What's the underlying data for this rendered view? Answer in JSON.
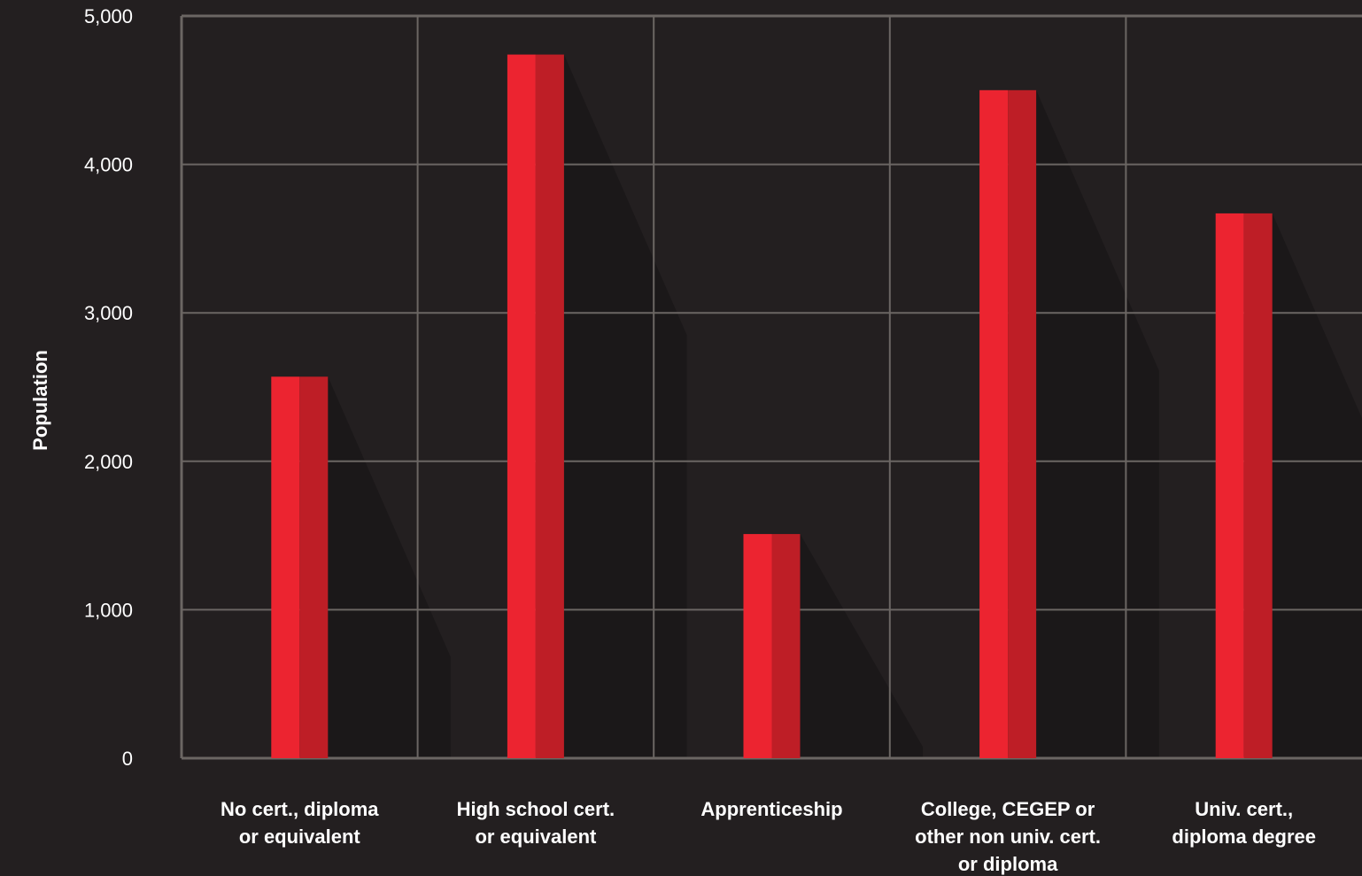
{
  "chart_data": {
    "type": "bar",
    "title": "",
    "xlabel": "",
    "ylabel": "Population",
    "ylim": [
      0,
      5000
    ],
    "yticks": [
      0,
      1000,
      2000,
      3000,
      4000,
      5000
    ],
    "ytick_labels": [
      "0",
      "1,000",
      "2,000",
      "3,000",
      "4,000",
      "5,000"
    ],
    "grid": true,
    "categories": [
      [
        "No cert., diploma",
        "or equivalent"
      ],
      [
        "High school cert.",
        "or equivalent"
      ],
      [
        "Apprenticeship"
      ],
      [
        "College, CEGEP or",
        "other non univ. cert.",
        "or diploma"
      ],
      [
        "Univ. cert.,",
        "diploma degree"
      ]
    ],
    "values": [
      2570,
      4740,
      1510,
      4500,
      3670
    ],
    "colors": {
      "background": "#231f20",
      "grid": "#6b6663",
      "bar_light": "#ec2430",
      "bar_dark": "#be1e26",
      "shadow": "#1b1819",
      "text": "#ffffff"
    }
  }
}
